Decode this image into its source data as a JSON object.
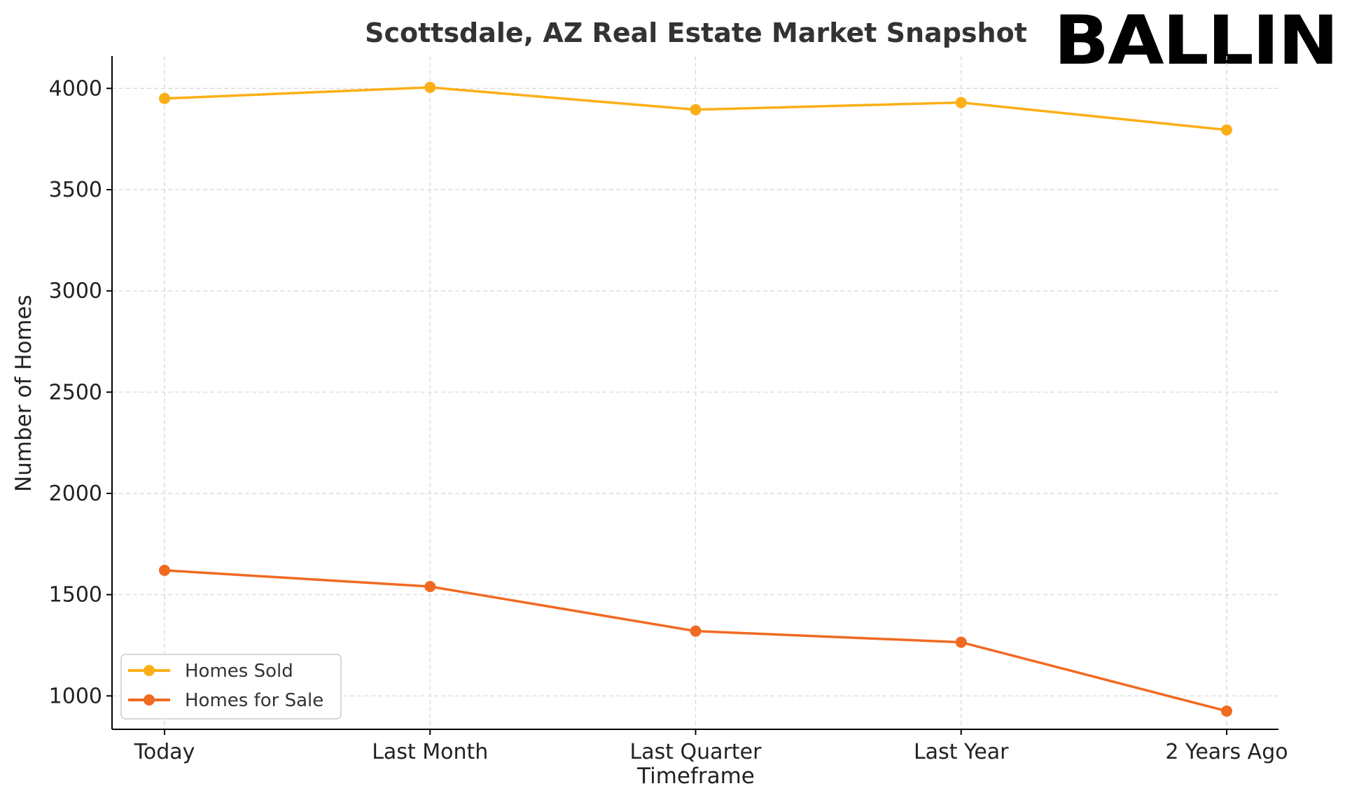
{
  "chart_data": {
    "type": "line",
    "title": "Scottsdale, AZ Real Estate Market Snapshot",
    "xlabel": "Timeframe",
    "ylabel": "Number of Homes",
    "categories": [
      "Today",
      "Last Month",
      "Last Quarter",
      "Last Year",
      "2 Years Ago"
    ],
    "series": [
      {
        "name": "Homes Sold",
        "color": "#FBAF16",
        "values": [
          3950,
          4005,
          3895,
          3930,
          3795
        ]
      },
      {
        "name": "Homes for Sale",
        "color": "#F06A22",
        "values": [
          1620,
          1540,
          1320,
          1265,
          925
        ]
      }
    ],
    "ylim": [
      835,
      4160
    ],
    "yticks": [
      1000,
      1500,
      2000,
      2500,
      3000,
      3500,
      4000
    ],
    "grid": true,
    "legend_position": "lower-left"
  },
  "logo": {
    "text": "BALLIN"
  }
}
